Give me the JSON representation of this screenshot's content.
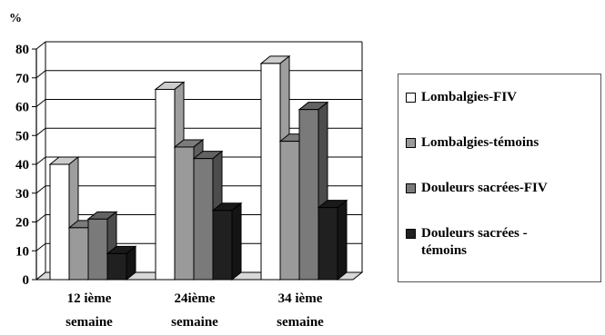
{
  "chart_data": {
    "type": "bar",
    "unit_label": "%",
    "categories": [
      "12 ième\nsemaine",
      "24ième\nsemaine",
      "34 ième\nsemaine"
    ],
    "series": [
      {
        "name": "Lombalgies-FIV",
        "values": [
          40,
          66,
          75
        ],
        "color": "#ffffff"
      },
      {
        "name": "Lombalgies-témoins",
        "values": [
          18,
          46,
          48
        ],
        "color": "#9a9a9a"
      },
      {
        "name": "Douleurs sacrées-FIV",
        "values": [
          21,
          42,
          59
        ],
        "color": "#7a7a7a"
      },
      {
        "name": "Douleurs sacrées -\ntémoins",
        "values": [
          9,
          24,
          25
        ],
        "color": "#202020"
      }
    ],
    "yticks": [
      0,
      10,
      20,
      30,
      40,
      50,
      60,
      70,
      80
    ],
    "ylim": [
      0,
      80
    ],
    "grid": true,
    "legend_position": "right"
  }
}
